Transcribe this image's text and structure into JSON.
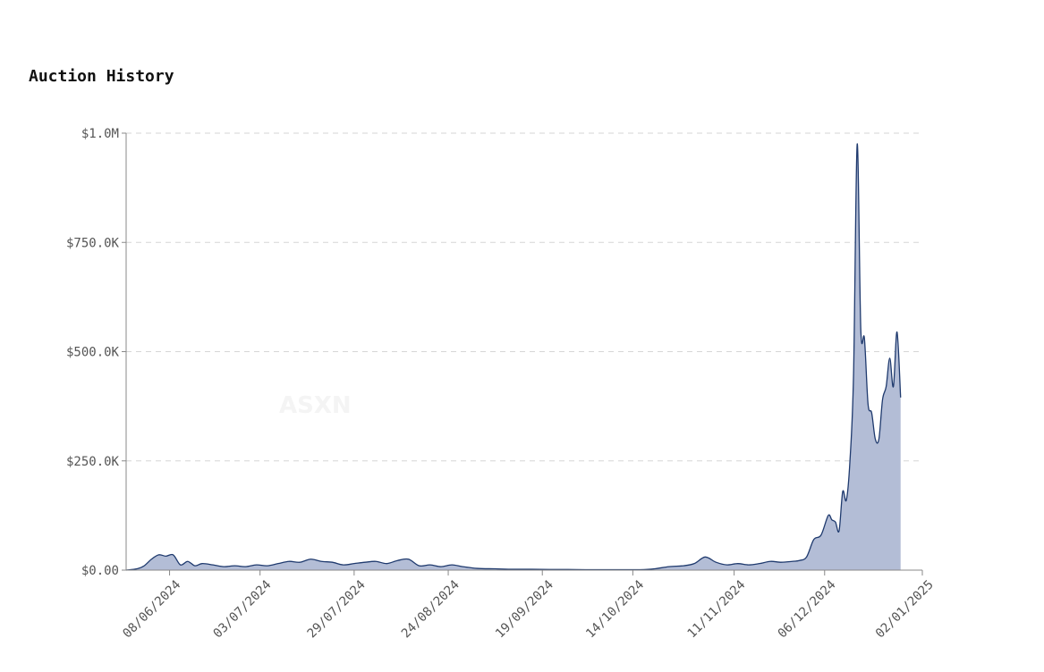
{
  "title": "Auction History",
  "watermark": "ASXN",
  "chart_data": {
    "type": "area",
    "title": "Auction History",
    "xlabel": "",
    "ylabel": "",
    "x_tick_labels": [
      "08/06/2024",
      "03/07/2024",
      "29/07/2024",
      "24/08/2024",
      "19/09/2024",
      "14/10/2024",
      "11/11/2024",
      "06/12/2024",
      "02/01/2025"
    ],
    "y_tick_labels": [
      "$0.00",
      "$250.0K",
      "$500.0K",
      "$750.0K",
      "$1.0M"
    ],
    "y_ticks": [
      0,
      250000,
      500000,
      750000,
      1000000
    ],
    "ylim": [
      0,
      1000000
    ],
    "xlim": [
      "2024-05-27",
      "2025-01-02"
    ],
    "grid": "horizontal dashed",
    "colors": {
      "fill": "#b3bdd6",
      "line": "#1f3a6e"
    },
    "x": [
      "2024-05-27",
      "2024-05-30",
      "2024-06-01",
      "2024-06-03",
      "2024-06-05",
      "2024-06-07",
      "2024-06-09",
      "2024-06-11",
      "2024-06-13",
      "2024-06-15",
      "2024-06-17",
      "2024-06-20",
      "2024-06-23",
      "2024-06-26",
      "2024-06-29",
      "2024-07-02",
      "2024-07-05",
      "2024-07-08",
      "2024-07-11",
      "2024-07-14",
      "2024-07-17",
      "2024-07-20",
      "2024-07-23",
      "2024-07-26",
      "2024-07-29",
      "2024-08-01",
      "2024-08-04",
      "2024-08-07",
      "2024-08-10",
      "2024-08-13",
      "2024-08-16",
      "2024-08-19",
      "2024-08-22",
      "2024-08-25",
      "2024-08-28",
      "2024-09-01",
      "2024-09-06",
      "2024-09-11",
      "2024-09-16",
      "2024-09-21",
      "2024-09-26",
      "2024-10-01",
      "2024-10-06",
      "2024-10-11",
      "2024-10-16",
      "2024-10-20",
      "2024-10-24",
      "2024-10-28",
      "2024-10-31",
      "2024-11-03",
      "2024-11-06",
      "2024-11-09",
      "2024-11-12",
      "2024-11-15",
      "2024-11-18",
      "2024-11-21",
      "2024-11-24",
      "2024-11-27",
      "2024-11-29",
      "2024-12-01",
      "2024-12-03",
      "2024-12-05",
      "2024-12-07",
      "2024-12-08",
      "2024-12-09",
      "2024-12-10",
      "2024-12-11",
      "2024-12-12",
      "2024-12-13",
      "2024-12-14",
      "2024-12-15",
      "2024-12-16",
      "2024-12-17",
      "2024-12-18",
      "2024-12-19",
      "2024-12-20",
      "2024-12-21",
      "2024-12-22",
      "2024-12-23",
      "2024-12-24",
      "2024-12-25",
      "2024-12-26",
      "2024-12-27",
      "2024-12-28",
      "2024-12-29",
      "2024-12-30",
      "2024-12-31",
      "2025-01-01",
      "2025-01-02"
    ],
    "series": [
      {
        "values": [
          0,
          3000,
          10000,
          25000,
          35000,
          32000,
          35000,
          12000,
          20000,
          10000,
          15000,
          12000,
          8000,
          10000,
          8000,
          12000,
          10000,
          15000,
          20000,
          18000,
          25000,
          20000,
          18000,
          12000,
          15000,
          18000,
          20000,
          15000,
          22000,
          25000,
          10000,
          12000,
          8000,
          12000,
          8000,
          4000,
          3000,
          2000,
          2000,
          1500,
          1500,
          1000,
          1000,
          1000,
          1000,
          3000,
          8000,
          10000,
          15000,
          30000,
          18000,
          12000,
          15000,
          12000,
          15000,
          20000,
          18000,
          20000,
          22000,
          30000,
          70000,
          80000,
          125000,
          115000,
          110000,
          90000,
          180000,
          160000,
          250000,
          450000,
          975000,
          550000,
          530000,
          380000,
          360000,
          300000,
          300000,
          390000,
          420000,
          485000,
          420000,
          545000,
          395000,
          null,
          null,
          null,
          null,
          null,
          null
        ]
      }
    ]
  }
}
